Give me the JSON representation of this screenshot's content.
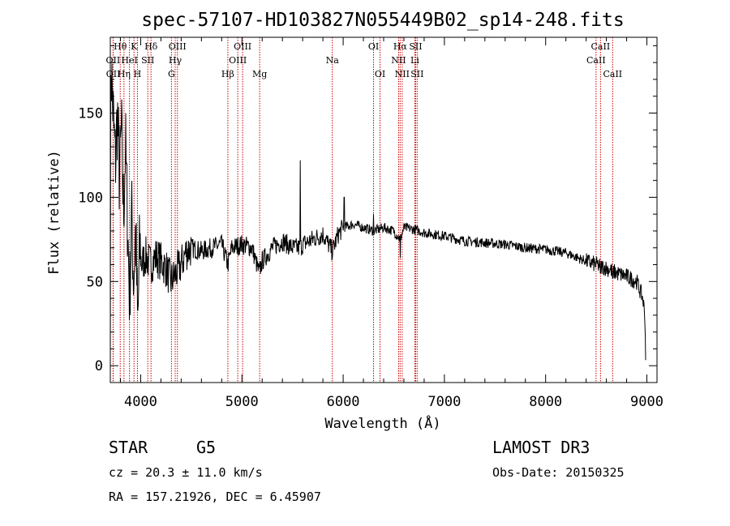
{
  "chart_data": {
    "type": "line",
    "title": "spec-57107-HD103827N055449B02_sp14-248.fits",
    "xlabel": "Wavelength (Å)",
    "ylabel": "Flux (relative)",
    "xlim": [
      3700,
      9100
    ],
    "ylim": [
      -10,
      195
    ],
    "xticks": [
      4000,
      5000,
      6000,
      7000,
      8000,
      9000
    ],
    "yticks": [
      0,
      50,
      100,
      150
    ],
    "xminor_step": 200,
    "yminor_step": 10,
    "line_color": "#000000",
    "marker_color": "#cc0000",
    "spectrum_anchors": [
      [
        3700,
        5
      ],
      [
        3705,
        185
      ],
      [
        3720,
        160
      ],
      [
        3735,
        140
      ],
      [
        3750,
        120
      ],
      [
        3770,
        150
      ],
      [
        3790,
        110
      ],
      [
        3810,
        140
      ],
      [
        3830,
        90
      ],
      [
        3850,
        130
      ],
      [
        3870,
        85
      ],
      [
        3890,
        40
      ],
      [
        3910,
        90
      ],
      [
        3930,
        50
      ],
      [
        3950,
        80
      ],
      [
        3970,
        20
      ],
      [
        3990,
        70
      ],
      [
        4010,
        60
      ],
      [
        4050,
        65
      ],
      [
        4100,
        60
      ],
      [
        4150,
        65
      ],
      [
        4200,
        62
      ],
      [
        4250,
        58
      ],
      [
        4300,
        50
      ],
      [
        4350,
        55
      ],
      [
        4400,
        60
      ],
      [
        4450,
        68
      ],
      [
        4500,
        70
      ],
      [
        4600,
        68
      ],
      [
        4700,
        70
      ],
      [
        4800,
        72
      ],
      [
        4861,
        60
      ],
      [
        4900,
        70
      ],
      [
        5000,
        72
      ],
      [
        5100,
        70
      ],
      [
        5170,
        55
      ],
      [
        5200,
        62
      ],
      [
        5300,
        70
      ],
      [
        5400,
        74
      ],
      [
        5500,
        70
      ],
      [
        5577,
        70
      ],
      [
        5600,
        72
      ],
      [
        5700,
        75
      ],
      [
        5800,
        78
      ],
      [
        5893,
        68
      ],
      [
        5950,
        78
      ],
      [
        6000,
        82
      ],
      [
        6100,
        84
      ],
      [
        6200,
        82
      ],
      [
        6300,
        80
      ],
      [
        6400,
        82
      ],
      [
        6500,
        80
      ],
      [
        6563,
        75
      ],
      [
        6600,
        82
      ],
      [
        6700,
        81
      ],
      [
        6800,
        79
      ],
      [
        6900,
        78
      ],
      [
        7000,
        77
      ],
      [
        7200,
        74
      ],
      [
        7400,
        73
      ],
      [
        7600,
        72
      ],
      [
        7800,
        70
      ],
      [
        8000,
        69
      ],
      [
        8200,
        67
      ],
      [
        8400,
        62
      ],
      [
        8500,
        60
      ],
      [
        8600,
        58
      ],
      [
        8700,
        55
      ],
      [
        8800,
        53
      ],
      [
        8900,
        50
      ],
      [
        8960,
        40
      ],
      [
        8980,
        30
      ],
      [
        8990,
        0
      ]
    ],
    "spectrum_spikes": [
      [
        5577,
        122
      ],
      [
        6563,
        64
      ],
      [
        6010,
        100
      ],
      [
        6300,
        90
      ],
      [
        8542,
        55
      ],
      [
        8662,
        52
      ]
    ],
    "lines": [
      {
        "name": "OII",
        "wave": 3727,
        "row": 2
      },
      {
        "name": "OII",
        "wave": 3729,
        "row": 3
      },
      {
        "name": "Hθ",
        "wave": 3798,
        "row": 1
      },
      {
        "name": "Hη",
        "wave": 3835,
        "row": 3
      },
      {
        "name": "HeI",
        "wave": 3889,
        "row": 2
      },
      {
        "name": "K",
        "wave": 3934,
        "row": 1
      },
      {
        "name": "H",
        "wave": 3968,
        "row": 3
      },
      {
        "name": "SII",
        "wave": 4070,
        "row": 2
      },
      {
        "name": "Hδ",
        "wave": 4102,
        "row": 1
      },
      {
        "name": "G",
        "wave": 4304,
        "row": 3
      },
      {
        "name": "Hγ",
        "wave": 4341,
        "row": 2
      },
      {
        "name": "OIII",
        "wave": 4363,
        "row": 1
      },
      {
        "name": "Hβ",
        "wave": 4861,
        "row": 3
      },
      {
        "name": "OIII",
        "wave": 4959,
        "row": 2
      },
      {
        "name": "OIII",
        "wave": 5007,
        "row": 1
      },
      {
        "name": "Mg",
        "wave": 5175,
        "row": 3
      },
      {
        "name": "Na",
        "wave": 5893,
        "row": 2
      },
      {
        "name": "OI",
        "wave": 6300,
        "row": 1
      },
      {
        "name": "OI",
        "wave": 6364,
        "row": 3
      },
      {
        "name": "NII",
        "wave": 6548,
        "row": 2
      },
      {
        "name": "Hα",
        "wave": 6563,
        "row": 1
      },
      {
        "name": "NII",
        "wave": 6583,
        "row": 3
      },
      {
        "name": "Li",
        "wave": 6708,
        "row": 2
      },
      {
        "name": "SII",
        "wave": 6716,
        "row": 1
      },
      {
        "name": "SII",
        "wave": 6731,
        "row": 3
      },
      {
        "name": "CaII",
        "wave": 8498,
        "row": 2
      },
      {
        "name": "CaII",
        "wave": 8542,
        "row": 1
      },
      {
        "name": "CaII",
        "wave": 8662,
        "row": 3
      }
    ]
  },
  "info": {
    "object_class": "STAR",
    "subclass": "G5",
    "survey": "LAMOST DR3",
    "redshift": "cz = 20.3 ± 11.0 km/s",
    "obs_date": "Obs-Date: 20150325",
    "coords": "RA = 157.21926, DEC =    6.45907"
  }
}
